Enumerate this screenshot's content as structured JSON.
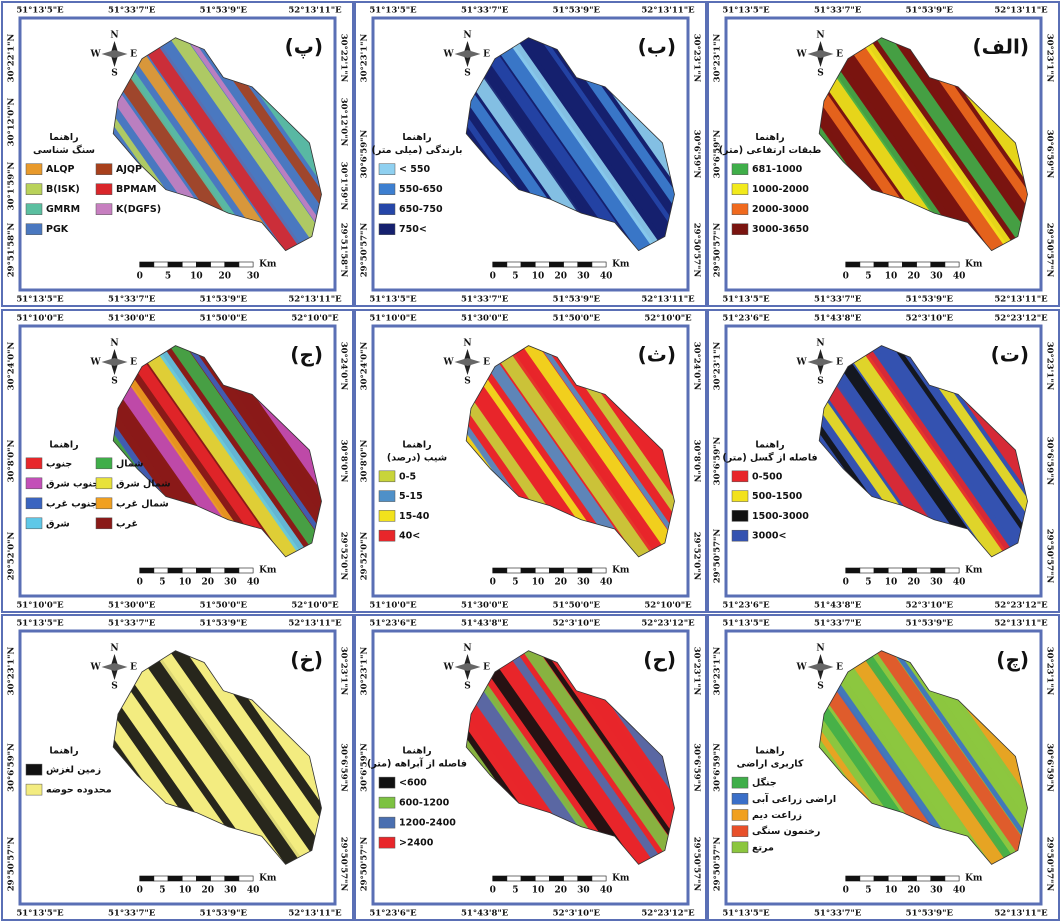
{
  "compass": [
    "N",
    "E",
    "S",
    "W"
  ],
  "panels": [
    {
      "label": "(پ)",
      "top_labels": [
        "51°13'5\"E",
        "51°33'7\"E",
        "51°53'9\"E",
        "52°13'11\"E"
      ],
      "bottom_labels": [
        "51°13'5\"E",
        "51°33'7\"E",
        "51°53'9\"E",
        "52°13'11\"E"
      ],
      "lat_labels": [
        "30°22'1\"N",
        "30°12'0\"N",
        "30°1'59\"N",
        "29°51'58\"N"
      ],
      "legend_title": [
        "راهنما",
        "سنگ شناسی"
      ],
      "legend": [
        {
          "name": "ALQP",
          "color": "#e89a2c"
        },
        {
          "name": "AJQP",
          "color": "#a8401c"
        },
        {
          "name": "B(ISK)",
          "color": "#b9d25a"
        },
        {
          "name": "BPMAM",
          "color": "#d9262a"
        },
        {
          "name": "GMRM",
          "color": "#5bbfa0"
        },
        {
          "name": "K(DGFS)",
          "color": "#c77fc0"
        },
        {
          "name": "PGK",
          "color": "#4a78c0"
        }
      ],
      "scale": [
        "0",
        "5",
        "10",
        "20",
        "30"
      ],
      "scale_unit": "Km"
    },
    {
      "label": "(ب)",
      "top_labels": [
        "51°13'5\"E",
        "51°33'7\"E",
        "51°53'9\"E",
        "52°13'11\"E"
      ],
      "bottom_labels": [
        "51°13'5\"E",
        "51°33'7\"E",
        "51°53'9\"E",
        "52°13'11\"E"
      ],
      "lat_labels": [
        "30°23'1\"N",
        "30°6'59\"N",
        "29°50'57\"N"
      ],
      "legend_title": [
        "راهنما",
        "بارندگی (میلی متر)"
      ],
      "legend": [
        {
          "name": "< 550",
          "color": "#8fd0f0"
        },
        {
          "name": "550-650",
          "color": "#3d7fd0"
        },
        {
          "name": "650-750",
          "color": "#2546a8"
        },
        {
          "name": "750<",
          "color": "#15206e"
        }
      ],
      "scale": [
        "0",
        "5",
        "10",
        "20",
        "30",
        "40"
      ],
      "scale_unit": "Km"
    },
    {
      "label": "(الف)",
      "top_labels": [
        "51°13'5\"E",
        "51°33'7\"E",
        "51°53'9\"E",
        "52°13'11\"E"
      ],
      "bottom_labels": [
        "51°13'5\"E",
        "51°33'7\"E",
        "51°53'9\"E",
        "52°13'11\"E"
      ],
      "lat_labels": [
        "30°23'1\"N",
        "30°6'59\"N",
        "29°50'57\"N"
      ],
      "legend_title": [
        "راهنما",
        "طبقات ارتفاعی (متر)"
      ],
      "legend": [
        {
          "name": "681-1000",
          "color": "#3fae49"
        },
        {
          "name": "1000-2000",
          "color": "#f2ea1c"
        },
        {
          "name": "2000-3000",
          "color": "#f06a1e"
        },
        {
          "name": "3000-3650",
          "color": "#7a1410"
        }
      ],
      "scale": [
        "0",
        "5",
        "10",
        "20",
        "30",
        "40"
      ],
      "scale_unit": "Km"
    },
    {
      "label": "(ج)",
      "top_labels": [
        "51°10'0\"E",
        "51°30'0\"E",
        "51°50'0\"E",
        "52°10'0\"E"
      ],
      "bottom_labels": [
        "51°10'0\"E",
        "51°30'0\"E",
        "51°50'0\"E",
        "52°10'0\"E"
      ],
      "lat_labels": [
        "30°24'0\"N",
        "30°8'0\"N",
        "29°52'0\"N"
      ],
      "legend_title": [
        "راهنما"
      ],
      "legend": [
        {
          "name": "جنوب",
          "color": "#e8262a"
        },
        {
          "name": "شمال",
          "color": "#3fae49"
        },
        {
          "name": "جنوب شرق",
          "color": "#c34fb8"
        },
        {
          "name": "شمال شرق",
          "color": "#e8e23a"
        },
        {
          "name": "جنوب غرب",
          "color": "#3a64c0"
        },
        {
          "name": "شمال غرب",
          "color": "#f0a020"
        },
        {
          "name": "شرق",
          "color": "#5fc8e8"
        },
        {
          "name": "غرب",
          "color": "#8a1a18"
        }
      ],
      "scale": [
        "0",
        "5",
        "10",
        "20",
        "30",
        "40"
      ],
      "scale_unit": "Km"
    },
    {
      "label": "(ث)",
      "top_labels": [
        "51°10'0\"E",
        "51°30'0\"E",
        "51°50'0\"E",
        "52°10'0\"E"
      ],
      "bottom_labels": [
        "51°10'0\"E",
        "51°30'0\"E",
        "51°50'0\"E",
        "52°10'0\"E"
      ],
      "lat_labels": [
        "30°24'0\"N",
        "30°8'0\"N",
        "29°52'0\"N"
      ],
      "legend_title": [
        "راهنما",
        "شیب (درصد)"
      ],
      "legend": [
        {
          "name": "0-5",
          "color": "#c8d43a"
        },
        {
          "name": "5-15",
          "color": "#4f90c8"
        },
        {
          "name": "15-40",
          "color": "#f2e21c"
        },
        {
          "name": "40<",
          "color": "#e8262a"
        }
      ],
      "scale": [
        "0",
        "5",
        "10",
        "20",
        "30",
        "40"
      ],
      "scale_unit": "Km"
    },
    {
      "label": "(ت)",
      "top_labels": [
        "51°23'6\"E",
        "51°43'8\"E",
        "52°3'10\"E",
        "52°23'12\"E"
      ],
      "bottom_labels": [
        "51°23'6\"E",
        "51°43'8\"E",
        "52°3'10\"E",
        "52°23'12\"E"
      ],
      "lat_labels": [
        "30°23'1\"N",
        "30°6'59\"N",
        "29°50'57\"N"
      ],
      "legend_title": [
        "راهنما",
        "فاصله از گسل (متر)"
      ],
      "legend": [
        {
          "name": "0-500",
          "color": "#e8262a"
        },
        {
          "name": "500-1500",
          "color": "#f2e21c"
        },
        {
          "name": "1500-3000",
          "color": "#111111"
        },
        {
          "name": "3000<",
          "color": "#3452b0"
        }
      ],
      "scale": [
        "0",
        "5",
        "10",
        "20",
        "30",
        "40"
      ],
      "scale_unit": "Km"
    },
    {
      "label": "(خ)",
      "top_labels": [
        "51°13'5\"E",
        "51°33'7\"E",
        "51°53'9\"E",
        "52°13'11\"E"
      ],
      "bottom_labels": [
        "51°13'5\"E",
        "51°33'7\"E",
        "51°53'9\"E",
        "52°13'11\"E"
      ],
      "lat_labels": [
        "30°23'1\"N",
        "30°6'59\"N",
        "29°50'57\"N"
      ],
      "legend_title": [
        "راهنما"
      ],
      "legend": [
        {
          "name": "زمین لغزش",
          "color": "#111111"
        },
        {
          "name": "محدوده حوضه",
          "color": "#f3ec80"
        }
      ],
      "scale": [
        "0",
        "5",
        "10",
        "20",
        "30",
        "40"
      ],
      "scale_unit": "Km"
    },
    {
      "label": "(ح)",
      "top_labels": [
        "51°23'6\"E",
        "51°43'8\"E",
        "52°3'10\"E",
        "52°23'12\"E"
      ],
      "bottom_labels": [
        "51°23'6\"E",
        "51°43'8\"E",
        "52°3'10\"E",
        "52°23'12\"E"
      ],
      "lat_labels": [
        "30°23'1\"N",
        "30°6'59\"N",
        "29°50'57\"N"
      ],
      "legend_title": [
        "راهنما",
        "فاصله از آبراهه (متر)"
      ],
      "legend": [
        {
          "name": "<600",
          "color": "#111111"
        },
        {
          "name": "600-1200",
          "color": "#7dc242"
        },
        {
          "name": "1200-2400",
          "color": "#4a6fb0"
        },
        {
          "name": ">2400",
          "color": "#e8262a"
        }
      ],
      "scale": [
        "0",
        "5",
        "10",
        "20",
        "30",
        "40"
      ],
      "scale_unit": "Km"
    },
    {
      "label": "(چ)",
      "top_labels": [
        "51°13'5\"E",
        "51°33'7\"E",
        "51°53'9\"E",
        "52°13'11\"E"
      ],
      "bottom_labels": [
        "51°13'5\"E",
        "51°33'7\"E",
        "51°53'9\"E",
        "52°13'11\"E"
      ],
      "lat_labels": [
        "30°23'1\"N",
        "30°6'59\"N",
        "29°50'57\"N"
      ],
      "legend_title": [
        "راهنما",
        "کاربری اراضی"
      ],
      "legend": [
        {
          "name": "جنگل",
          "color": "#3fae49"
        },
        {
          "name": "اراضی زراعی آبی",
          "color": "#3a6fc8"
        },
        {
          "name": "زراعت دیم",
          "color": "#f0a020"
        },
        {
          "name": "رخنمون سنگی",
          "color": "#e8502a"
        },
        {
          "name": "مرتع",
          "color": "#8cc63f"
        }
      ],
      "scale": [
        "0",
        "5",
        "10",
        "20",
        "30",
        "40"
      ],
      "scale_unit": "Km"
    }
  ]
}
